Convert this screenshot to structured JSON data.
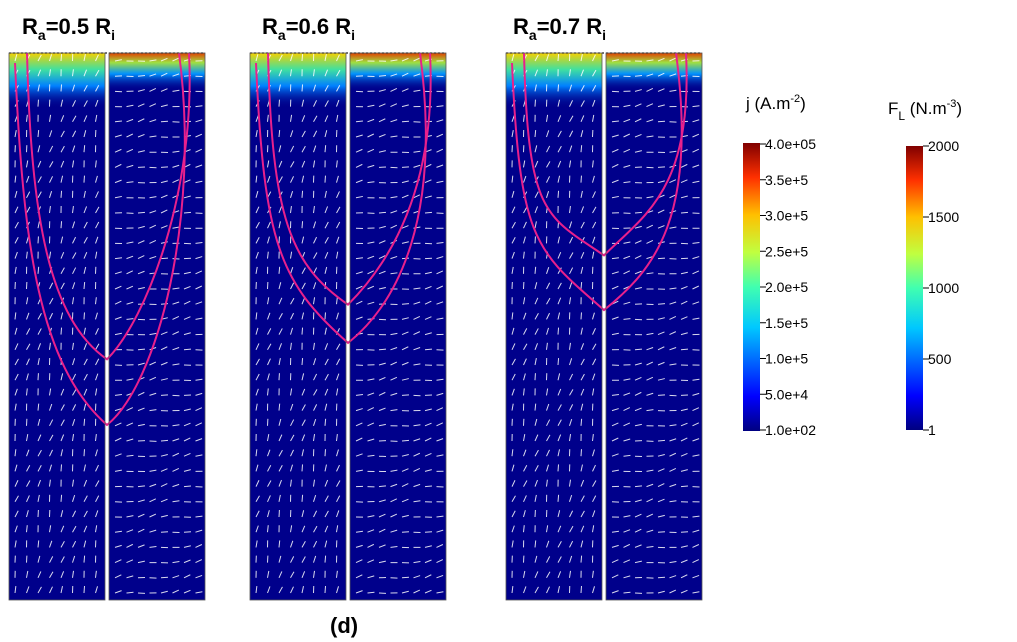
{
  "panels": [
    {
      "title_main": "R",
      "title_sub1": "a",
      "title_mid": "=0.5 R",
      "title_sub2": "i",
      "contour_depth_j": 0.56,
      "contour_depth_f": 0.68
    },
    {
      "title_main": "R",
      "title_sub1": "a",
      "title_mid": "=0.6 R",
      "title_sub2": "i",
      "contour_depth_j": 0.46,
      "contour_depth_f": 0.53
    },
    {
      "title_main": "R",
      "title_sub1": "a",
      "title_mid": "=0.7 R",
      "title_sub2": "i",
      "contour_depth_j": 0.37,
      "contour_depth_f": 0.47
    }
  ],
  "colorbar_j": {
    "label_main": "j (A.m",
    "label_sup": "-2",
    "label_end": ")",
    "ticks": [
      "4.0e+05",
      "3.5e+5",
      "3.0e+5",
      "2.5e+5",
      "2.0e+5",
      "1.5e+5",
      "1.0e+5",
      "5.0e+4",
      "1.0e+02"
    ]
  },
  "colorbar_f": {
    "label_main": "F",
    "label_sub": "L",
    "label_mid": " (N.m",
    "label_sup": "-3",
    "label_end": ")",
    "ticks": [
      "2000",
      "1500",
      "1000",
      "500",
      "1"
    ]
  },
  "caption": "(d)",
  "colors": {
    "field_background": "#00008b",
    "contour": "#e8208c",
    "arrow": "#ffffff"
  }
}
